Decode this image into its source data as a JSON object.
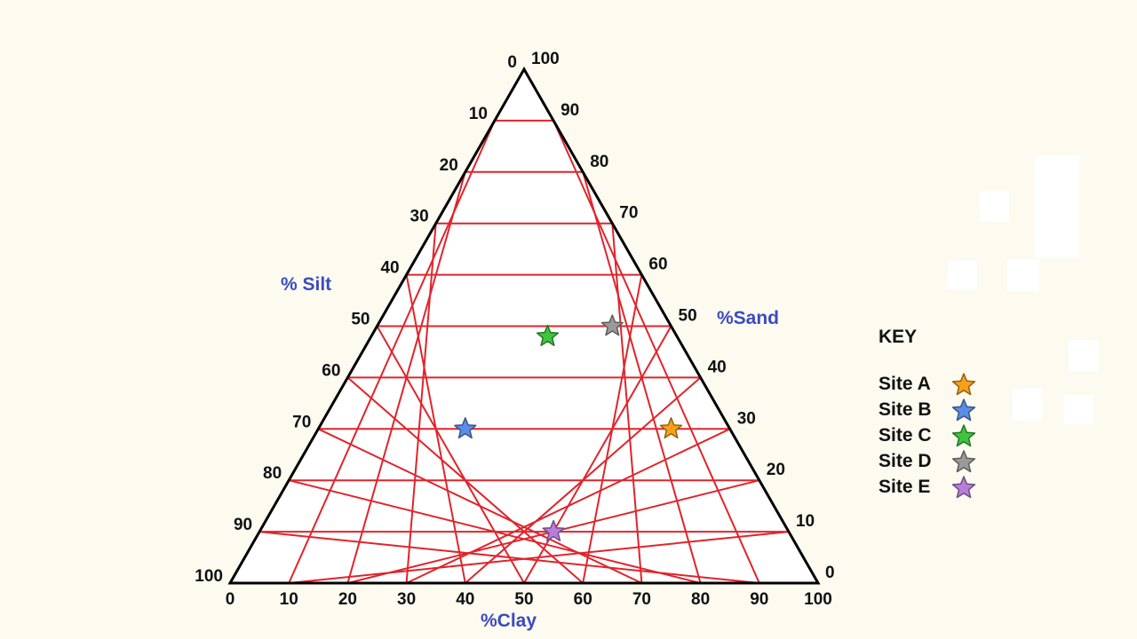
{
  "chart_data": {
    "type": "scatter",
    "title": "",
    "axes": {
      "silt": {
        "label": "% Silt",
        "range": [
          0,
          100
        ]
      },
      "sand": {
        "label": "%Sand",
        "range": [
          0,
          100
        ]
      },
      "clay": {
        "label": "%Clay",
        "range": [
          0,
          100
        ]
      }
    },
    "tick_labels": {
      "silt": [
        "0",
        "10",
        "20",
        "30",
        "40",
        "50",
        "60",
        "70",
        "80",
        "90",
        "100"
      ],
      "sand": [
        "100",
        "90",
        "80",
        "70",
        "60",
        "50",
        "40",
        "30",
        "20",
        "10",
        "0"
      ],
      "clay": [
        "0",
        "10",
        "20",
        "30",
        "40",
        "50",
        "60",
        "70",
        "80",
        "90",
        "100"
      ]
    },
    "grid": true,
    "grid_color": "#e0242b",
    "legend_position": "right",
    "legend_title": "KEY",
    "series": [
      {
        "name": "Site A",
        "color": "#f7a11a",
        "clay": 60,
        "sand": 30,
        "silt": 10
      },
      {
        "name": "Site B",
        "color": "#5b8de6",
        "clay": 25,
        "sand": 30,
        "silt": 45
      },
      {
        "name": "Site C",
        "color": "#3ec43e",
        "clay": 30,
        "sand": 48,
        "silt": 22
      },
      {
        "name": "Site D",
        "color": "#9a9a9a",
        "clay": 40,
        "sand": 50,
        "silt": 10
      },
      {
        "name": "Site E",
        "color": "#b77ed9",
        "clay": 50,
        "sand": 10,
        "silt": 40
      }
    ]
  }
}
